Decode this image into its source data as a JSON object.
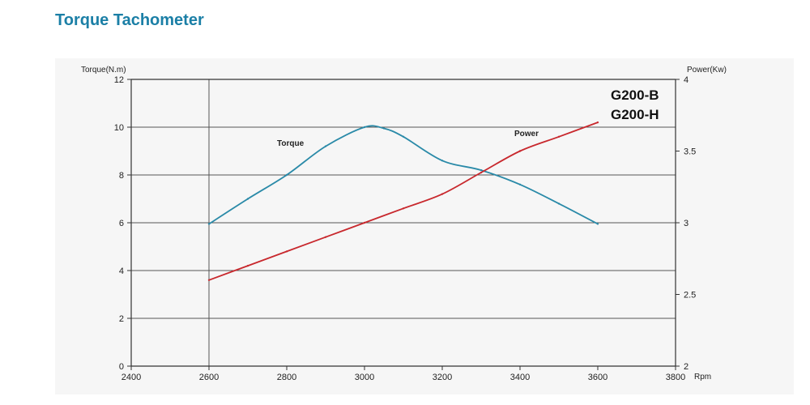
{
  "page": {
    "title": "Torque Tachometer"
  },
  "chart_data": {
    "type": "line",
    "x_unit_label": "Rpm",
    "xlim": [
      2400,
      3800
    ],
    "x_ticks": [
      2400,
      2600,
      2800,
      3000,
      3200,
      3400,
      3600,
      3800
    ],
    "left_axis": {
      "label": "Torque(N.m)",
      "lim": [
        0,
        12
      ],
      "ticks": [
        0,
        2,
        4,
        6,
        8,
        10,
        12
      ]
    },
    "right_axis": {
      "label": "Power(Kw)",
      "lim": [
        2,
        4
      ],
      "ticks": [
        2,
        2.5,
        3,
        3.5,
        4
      ]
    },
    "grid": true,
    "models": [
      "G200-B",
      "G200-H"
    ],
    "series": [
      {
        "name": "Torque",
        "axis": "left",
        "color": "#2a8aa8",
        "x": [
          2600,
          2700,
          2800,
          2900,
          3000,
          3050,
          3100,
          3200,
          3300,
          3400,
          3500,
          3600
        ],
        "y": [
          5.95,
          7.0,
          8.0,
          9.2,
          10.0,
          9.95,
          9.6,
          8.6,
          8.2,
          7.6,
          6.8,
          5.95
        ]
      },
      {
        "name": "Power",
        "axis": "right",
        "color": "#c8282d",
        "x": [
          2600,
          2700,
          2800,
          2900,
          3000,
          3100,
          3200,
          3300,
          3400,
          3500,
          3600
        ],
        "y": [
          2.6,
          2.7,
          2.8,
          2.9,
          3.0,
          3.1,
          3.2,
          3.35,
          3.5,
          3.6,
          3.7
        ]
      }
    ]
  }
}
